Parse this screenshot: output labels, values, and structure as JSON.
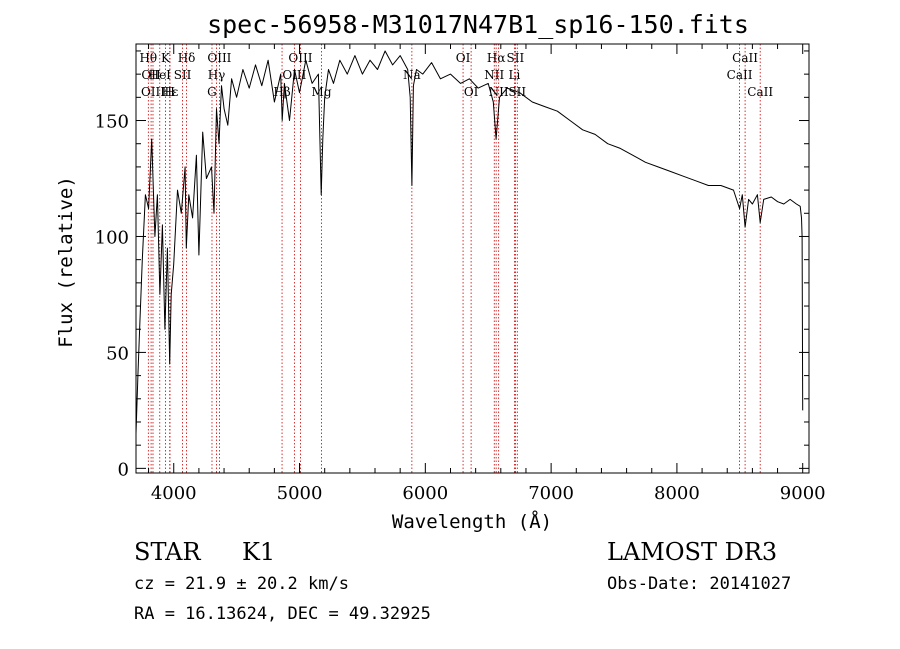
{
  "chart_data": {
    "type": "line",
    "title": "spec-56958-M31017N47B1_sp16-150.fits",
    "xlabel": "Wavelength (Å)",
    "ylabel": "Flux (relative)",
    "xlim": [
      3700,
      9050
    ],
    "ylim": [
      -2,
      183
    ],
    "xticks": [
      4000,
      5000,
      6000,
      7000,
      8000,
      9000
    ],
    "yticks": [
      0,
      50,
      100,
      150
    ],
    "xminor_step": 200,
    "yminor_step": 10,
    "series": [
      {
        "name": "flux",
        "color": "#000000",
        "x": [
          3700,
          3715,
          3730,
          3750,
          3775,
          3800,
          3825,
          3850,
          3870,
          3890,
          3910,
          3930,
          3950,
          3968,
          3980,
          4000,
          4030,
          4060,
          4090,
          4100,
          4120,
          4150,
          4180,
          4200,
          4230,
          4260,
          4300,
          4320,
          4340,
          4360,
          4380,
          4400,
          4430,
          4460,
          4500,
          4550,
          4600,
          4650,
          4700,
          4750,
          4800,
          4850,
          4862,
          4880,
          4920,
          4960,
          5000,
          5050,
          5100,
          5150,
          5172,
          5185,
          5200,
          5230,
          5270,
          5320,
          5380,
          5440,
          5500,
          5560,
          5620,
          5680,
          5740,
          5800,
          5860,
          5880,
          5893,
          5905,
          5930,
          5980,
          6050,
          6120,
          6200,
          6280,
          6350,
          6420,
          6500,
          6540,
          6563,
          6590,
          6650,
          6750,
          6850,
          6950,
          7050,
          7150,
          7250,
          7350,
          7450,
          7550,
          7650,
          7750,
          7850,
          7950,
          8050,
          8150,
          8250,
          8350,
          8450,
          8498,
          8520,
          8542,
          8570,
          8600,
          8640,
          8662,
          8690,
          8750,
          8800,
          8850,
          8900,
          8950,
          8980,
          8990,
          8995,
          9000
        ],
        "y": [
          15,
          40,
          62,
          90,
          118,
          112,
          142,
          100,
          118,
          75,
          105,
          60,
          95,
          45,
          75,
          88,
          120,
          110,
          130,
          95,
          118,
          108,
          135,
          92,
          145,
          125,
          130,
          110,
          155,
          140,
          165,
          155,
          148,
          168,
          160,
          172,
          164,
          174,
          165,
          176,
          158,
          170,
          150,
          166,
          150,
          172,
          162,
          176,
          166,
          170,
          118,
          142,
          160,
          172,
          166,
          176,
          170,
          178,
          170,
          176,
          172,
          180,
          174,
          178,
          172,
          160,
          122,
          165,
          172,
          170,
          175,
          168,
          170,
          166,
          168,
          164,
          166,
          158,
          142,
          160,
          164,
          162,
          158,
          156,
          154,
          150,
          146,
          144,
          140,
          138,
          135,
          132,
          130,
          128,
          126,
          124,
          122,
          122,
          120,
          112,
          118,
          104,
          116,
          114,
          118,
          106,
          116,
          117,
          115,
          114,
          116,
          114,
          113,
          108,
          100,
          25
        ]
      }
    ],
    "spectral_lines": [
      {
        "wavelength": 3798,
        "label": "Hθ",
        "row": 1
      },
      {
        "wavelength": 3820,
        "label": "OII",
        "row": 2
      },
      {
        "wavelength": 3835,
        "label": "OIII",
        "row": 3
      },
      {
        "wavelength": 3889,
        "label": "HeI",
        "row": 2
      },
      {
        "wavelength": 3934,
        "label": "K",
        "row": 1
      },
      {
        "wavelength": 3970,
        "label": "Hε",
        "row": 3
      },
      {
        "wavelength": 3968,
        "label": "H",
        "row": 3
      },
      {
        "wavelength": 4070,
        "label": "SII",
        "row": 2
      },
      {
        "wavelength": 4102,
        "label": "Hδ",
        "row": 1
      },
      {
        "wavelength": 4304,
        "label": "G",
        "row": 3
      },
      {
        "wavelength": 4340,
        "label": "Hγ",
        "row": 2
      },
      {
        "wavelength": 4363,
        "label": "OIII",
        "row": 1
      },
      {
        "wavelength": 4861,
        "label": "Hβ",
        "row": 3
      },
      {
        "wavelength": 4959,
        "label": "OIII",
        "row": 2
      },
      {
        "wavelength": 5007,
        "label": "OIII",
        "row": 1
      },
      {
        "wavelength": 5175,
        "label": "Mg",
        "row": 3
      },
      {
        "wavelength": 5893,
        "label": "Na",
        "row": 2
      },
      {
        "wavelength": 6300,
        "label": "OI",
        "row": 1
      },
      {
        "wavelength": 6364,
        "label": "OI",
        "row": 3
      },
      {
        "wavelength": 6548,
        "label": "NII",
        "row": 2
      },
      {
        "wavelength": 6563,
        "label": "Hα",
        "row": 1
      },
      {
        "wavelength": 6583,
        "label": "NII",
        "row": 3
      },
      {
        "wavelength": 6708,
        "label": "Li",
        "row": 2
      },
      {
        "wavelength": 6716,
        "label": "SII",
        "row": 1
      },
      {
        "wavelength": 6731,
        "label": "SII",
        "row": 3
      },
      {
        "wavelength": 8498,
        "label": "CaII",
        "row": 2
      },
      {
        "wavelength": 8542,
        "label": "CaII",
        "row": 1
      },
      {
        "wavelength": 8662,
        "label": "CaII",
        "row": 3
      }
    ]
  },
  "info": {
    "object_class": "STAR",
    "subclass": "K1",
    "survey": "LAMOST DR3",
    "redshift_text": "cz = 21.9 ± 20.2 km/s",
    "obs_date_text": "Obs-Date: 20141027",
    "coords_text": "RA =  16.13624, DEC =  49.32925"
  },
  "colors": {
    "spectrum": "#000000",
    "line_markers": "#cc0000",
    "axes": "#000000",
    "background": "#ffffff"
  }
}
